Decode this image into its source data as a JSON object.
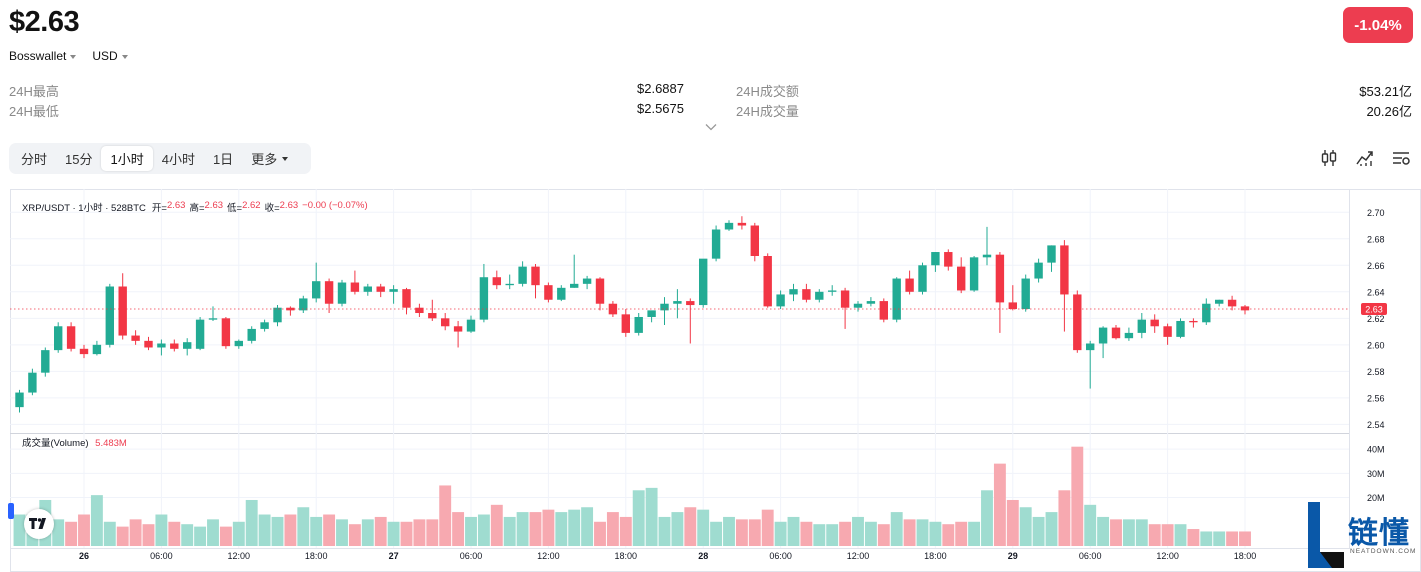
{
  "header": {
    "price": "$2.63",
    "change": "-1.04%",
    "exchange_selector": "Bosswallet",
    "currency_selector": "USD"
  },
  "stats": {
    "high_label": "24H最高",
    "high_value": "$2.6887",
    "low_label": "24H最低",
    "low_value": "$2.5675",
    "turnover_label": "24H成交额",
    "turnover_value": "$53.21亿",
    "volume_label": "24H成交量",
    "volume_value": "20.26亿"
  },
  "tabs": {
    "items": [
      "分时",
      "15分",
      "1小时",
      "4小时",
      "1日"
    ],
    "more": "更多",
    "active": "1小时"
  },
  "tools": [
    "candlestick-icon",
    "indicator-icon",
    "settings-list-icon"
  ],
  "legend": {
    "symbol": "XRP/USDT · 1小时 · 528BTC",
    "open_label": "开=",
    "open": "2.63",
    "high_label": "高=",
    "high": "2.63",
    "low_label": "低=",
    "low": "2.62",
    "close_label": "收=",
    "close": "2.63",
    "change": "−0.00 (−0.07%)"
  },
  "volume_legend": {
    "label": "成交量(Volume)",
    "value": "5.483M"
  },
  "watermark": {
    "text": "链懂",
    "sub": "NEATDOWN.COM"
  },
  "colors": {
    "up": "#22ab94",
    "down": "#f23645",
    "up_volume": "#9fdcd0",
    "down_volume": "#f7a9b0",
    "badge": "#ed3d50"
  },
  "chart_data": {
    "type": "candlestick",
    "price_axis_ticks": [
      "2.70",
      "2.68",
      "2.66",
      "2.64",
      "2.62",
      "2.60",
      "2.58",
      "2.56",
      "2.54"
    ],
    "price_range": [
      2.535,
      2.71
    ],
    "current_price_label": "2.63",
    "current_price": 2.627,
    "volume_axis_ticks": [
      "40M",
      "30M",
      "20M"
    ],
    "volume_range": [
      0,
      45
    ],
    "time_axis_ticks": [
      "26",
      "06:00",
      "12:00",
      "18:00",
      "27",
      "06:00",
      "12:00",
      "18:00",
      "28",
      "06:00",
      "12:00",
      "18:00",
      "29",
      "06:00",
      "12:00",
      "18:00"
    ],
    "time_tick_bar_index": [
      5,
      11,
      17,
      23,
      29,
      35,
      41,
      47,
      53,
      59,
      65,
      71,
      77,
      83,
      89,
      95
    ],
    "candles": [
      [
        2.553,
        2.566,
        2.549,
        2.564
      ],
      [
        2.564,
        2.582,
        2.562,
        2.579
      ],
      [
        2.579,
        2.598,
        2.576,
        2.596
      ],
      [
        2.596,
        2.617,
        2.594,
        2.614
      ],
      [
        2.614,
        2.617,
        2.595,
        2.597
      ],
      [
        2.597,
        2.6,
        2.59,
        2.593
      ],
      [
        2.593,
        2.603,
        2.592,
        2.6
      ],
      [
        2.6,
        2.646,
        2.598,
        2.644
      ],
      [
        2.644,
        2.654,
        2.604,
        2.607
      ],
      [
        2.607,
        2.611,
        2.6,
        2.603
      ],
      [
        2.603,
        2.606,
        2.596,
        2.598
      ],
      [
        2.598,
        2.604,
        2.592,
        2.601
      ],
      [
        2.601,
        2.604,
        2.595,
        2.597
      ],
      [
        2.597,
        2.605,
        2.592,
        2.602
      ],
      [
        2.597,
        2.621,
        2.596,
        2.619
      ],
      [
        2.619,
        2.629,
        2.618,
        2.62
      ],
      [
        2.62,
        2.621,
        2.597,
        2.599
      ],
      [
        2.599,
        2.604,
        2.597,
        2.603
      ],
      [
        2.603,
        2.614,
        2.601,
        2.612
      ],
      [
        2.612,
        2.619,
        2.61,
        2.617
      ],
      [
        2.617,
        2.63,
        2.614,
        2.628
      ],
      [
        2.628,
        2.629,
        2.622,
        2.626
      ],
      [
        2.626,
        2.637,
        2.624,
        2.635
      ],
      [
        2.635,
        2.662,
        2.632,
        2.648
      ],
      [
        2.648,
        2.65,
        2.624,
        2.631
      ],
      [
        2.631,
        2.649,
        2.629,
        2.647
      ],
      [
        2.647,
        2.656,
        2.638,
        2.64
      ],
      [
        2.64,
        2.646,
        2.637,
        2.644
      ],
      [
        2.644,
        2.646,
        2.636,
        2.64
      ],
      [
        2.64,
        2.645,
        2.631,
        2.642
      ],
      [
        2.642,
        2.643,
        2.623,
        2.628
      ],
      [
        2.628,
        2.631,
        2.621,
        2.624
      ],
      [
        2.624,
        2.634,
        2.618,
        2.62
      ],
      [
        2.62,
        2.624,
        2.611,
        2.614
      ],
      [
        2.614,
        2.618,
        2.598,
        2.61
      ],
      [
        2.61,
        2.622,
        2.609,
        2.619
      ],
      [
        2.619,
        2.661,
        2.617,
        2.651
      ],
      [
        2.651,
        2.656,
        2.642,
        2.645
      ],
      [
        2.645,
        2.653,
        2.642,
        2.646
      ],
      [
        2.646,
        2.663,
        2.644,
        2.659
      ],
      [
        2.659,
        2.661,
        2.635,
        2.645
      ],
      [
        2.645,
        2.647,
        2.632,
        2.634
      ],
      [
        2.634,
        2.645,
        2.633,
        2.643
      ],
      [
        2.643,
        2.668,
        2.643,
        2.646
      ],
      [
        2.646,
        2.652,
        2.642,
        2.65
      ],
      [
        2.65,
        2.651,
        2.626,
        2.631
      ],
      [
        2.631,
        2.633,
        2.621,
        2.623
      ],
      [
        2.623,
        2.627,
        2.606,
        2.609
      ],
      [
        2.609,
        2.624,
        2.607,
        2.621
      ],
      [
        2.621,
        2.625,
        2.617,
        2.626
      ],
      [
        2.626,
        2.636,
        2.615,
        2.631
      ],
      [
        2.631,
        2.642,
        2.62,
        2.633
      ],
      [
        2.633,
        2.635,
        2.601,
        2.63
      ],
      [
        2.63,
        2.664,
        2.628,
        2.665
      ],
      [
        2.665,
        2.69,
        2.663,
        2.687
      ],
      [
        2.687,
        2.694,
        2.686,
        2.692
      ],
      [
        2.692,
        2.697,
        2.687,
        2.69
      ],
      [
        2.69,
        2.692,
        2.663,
        2.667
      ],
      [
        2.667,
        2.669,
        2.628,
        2.629
      ],
      [
        2.629,
        2.641,
        2.627,
        2.638
      ],
      [
        2.638,
        2.646,
        2.633,
        2.642
      ],
      [
        2.642,
        2.646,
        2.632,
        2.634
      ],
      [
        2.634,
        2.642,
        2.632,
        2.64
      ],
      [
        2.64,
        2.645,
        2.637,
        2.641
      ],
      [
        2.641,
        2.643,
        2.612,
        2.628
      ],
      [
        2.628,
        2.633,
        2.625,
        2.631
      ],
      [
        2.631,
        2.636,
        2.629,
        2.633
      ],
      [
        2.633,
        2.635,
        2.617,
        2.619
      ],
      [
        2.619,
        2.651,
        2.617,
        2.65
      ],
      [
        2.65,
        2.656,
        2.638,
        2.64
      ],
      [
        2.64,
        2.662,
        2.638,
        2.66
      ],
      [
        2.66,
        2.67,
        2.655,
        2.67
      ],
      [
        2.67,
        2.672,
        2.656,
        2.659
      ],
      [
        2.659,
        2.666,
        2.639,
        2.641
      ],
      [
        2.641,
        2.667,
        2.64,
        2.666
      ],
      [
        2.666,
        2.689,
        2.66,
        2.668
      ],
      [
        2.668,
        2.67,
        2.609,
        2.632
      ],
      [
        2.632,
        2.645,
        2.626,
        2.627
      ],
      [
        2.627,
        2.653,
        2.625,
        2.65
      ],
      [
        2.65,
        2.665,
        2.647,
        2.662
      ],
      [
        2.662,
        2.675,
        2.655,
        2.675
      ],
      [
        2.675,
        2.679,
        2.61,
        2.638
      ],
      [
        2.638,
        2.641,
        2.594,
        2.596
      ],
      [
        2.596,
        2.603,
        2.567,
        2.601
      ],
      [
        2.601,
        2.614,
        2.59,
        2.613
      ],
      [
        2.613,
        2.615,
        2.604,
        2.605
      ],
      [
        2.605,
        2.613,
        2.603,
        2.609
      ],
      [
        2.609,
        2.624,
        2.605,
        2.619
      ],
      [
        2.619,
        2.623,
        2.609,
        2.614
      ],
      [
        2.614,
        2.616,
        2.6,
        2.606
      ],
      [
        2.606,
        2.62,
        2.605,
        2.618
      ],
      [
        2.618,
        2.62,
        2.613,
        2.617
      ],
      [
        2.617,
        2.635,
        2.615,
        2.631
      ],
      [
        2.631,
        2.634,
        2.629,
        2.634
      ],
      [
        2.634,
        2.637,
        2.626,
        2.629
      ],
      [
        2.629,
        2.63,
        2.623,
        2.626
      ]
    ],
    "volumes": [
      13,
      13,
      19,
      11,
      10,
      13,
      21,
      10,
      8,
      11,
      9,
      13,
      10,
      9,
      8,
      11,
      8,
      10,
      19,
      13,
      12,
      13,
      16,
      12,
      13,
      11,
      9,
      11,
      12,
      10,
      10,
      11,
      11,
      25,
      14,
      12,
      13,
      17,
      12,
      14,
      14,
      15,
      14,
      15,
      16,
      10,
      14,
      12,
      23,
      24,
      12,
      14,
      16,
      15,
      10,
      12,
      11,
      11,
      15,
      10,
      12,
      10,
      9,
      9,
      10,
      12,
      10,
      9,
      14,
      11,
      11,
      10,
      9,
      10,
      10,
      23,
      34,
      19,
      16,
      12,
      14,
      23,
      41,
      17,
      12,
      11,
      11,
      11,
      9,
      9,
      9,
      7,
      6,
      6,
      6,
      6
    ]
  }
}
